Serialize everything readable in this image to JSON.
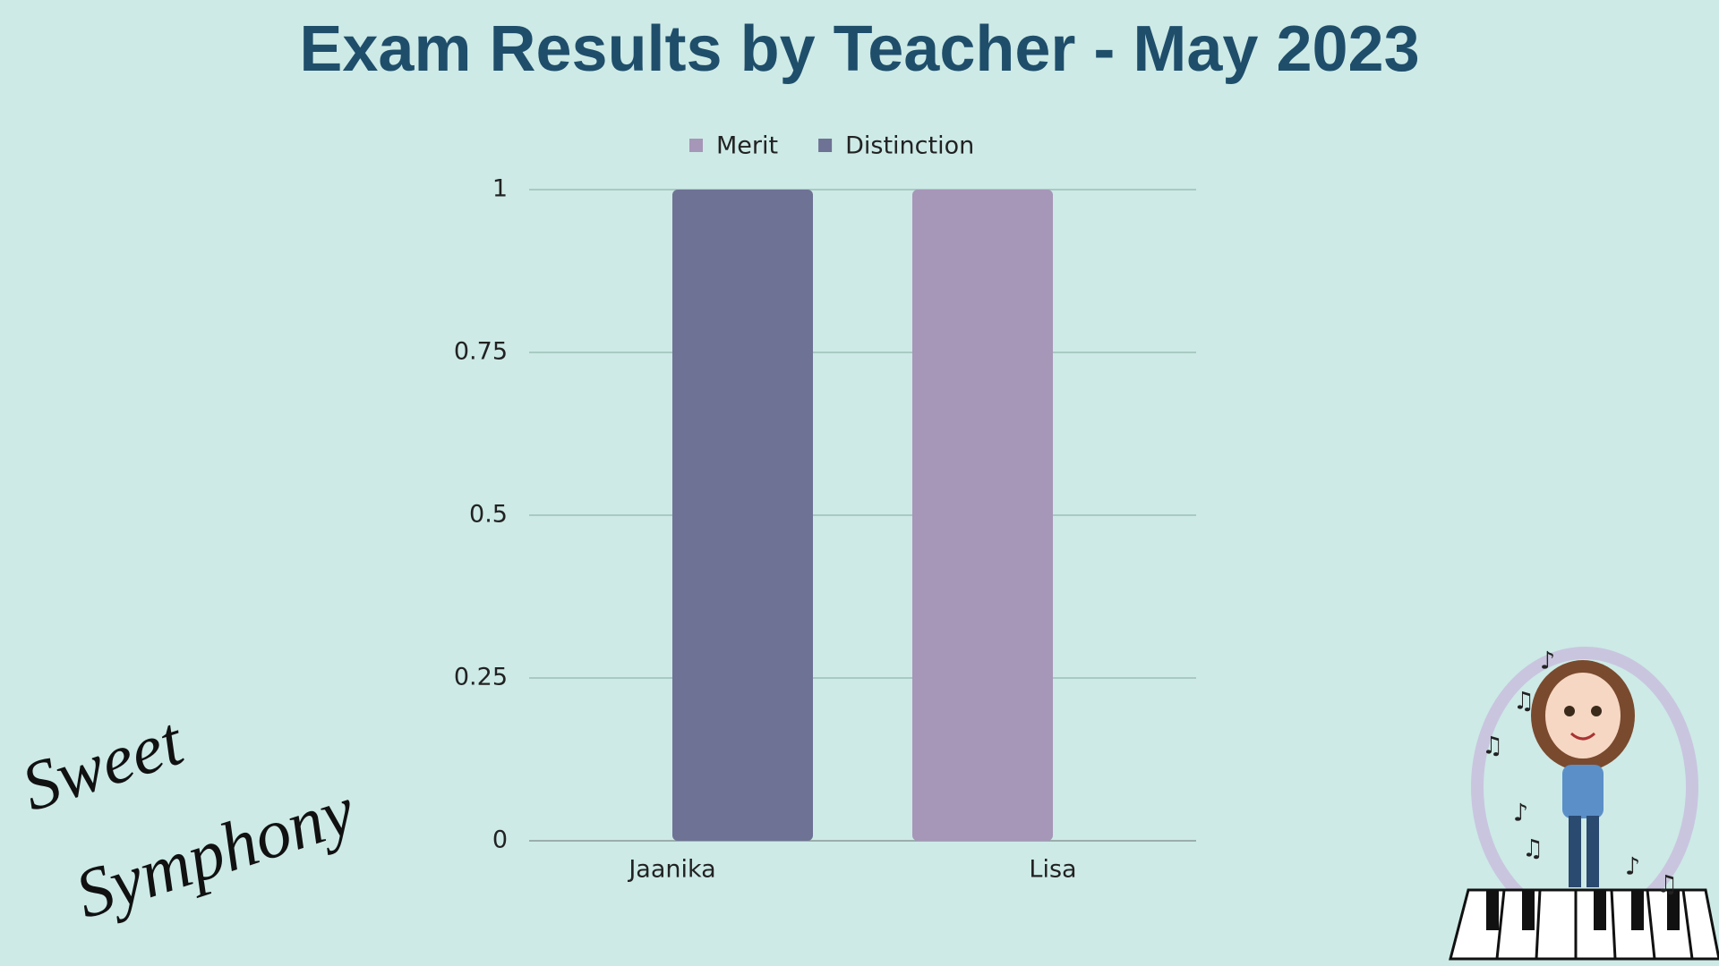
{
  "chart_data": {
    "type": "bar",
    "title": "Exam Results by Teacher - May 2023",
    "categories": [
      "Jaanika",
      "Lisa"
    ],
    "series": [
      {
        "name": "Merit",
        "color": "#a696b8",
        "values": [
          0,
          1
        ]
      },
      {
        "name": "Distinction",
        "color": "#6e7294",
        "values": [
          1,
          0
        ]
      }
    ],
    "ylim": [
      0,
      1
    ],
    "yticks": [
      0,
      0.25,
      0.5,
      0.75,
      1
    ],
    "grid": true,
    "legend": "top"
  },
  "logo": {
    "lines": [
      "Sweet",
      "Symphony"
    ]
  }
}
